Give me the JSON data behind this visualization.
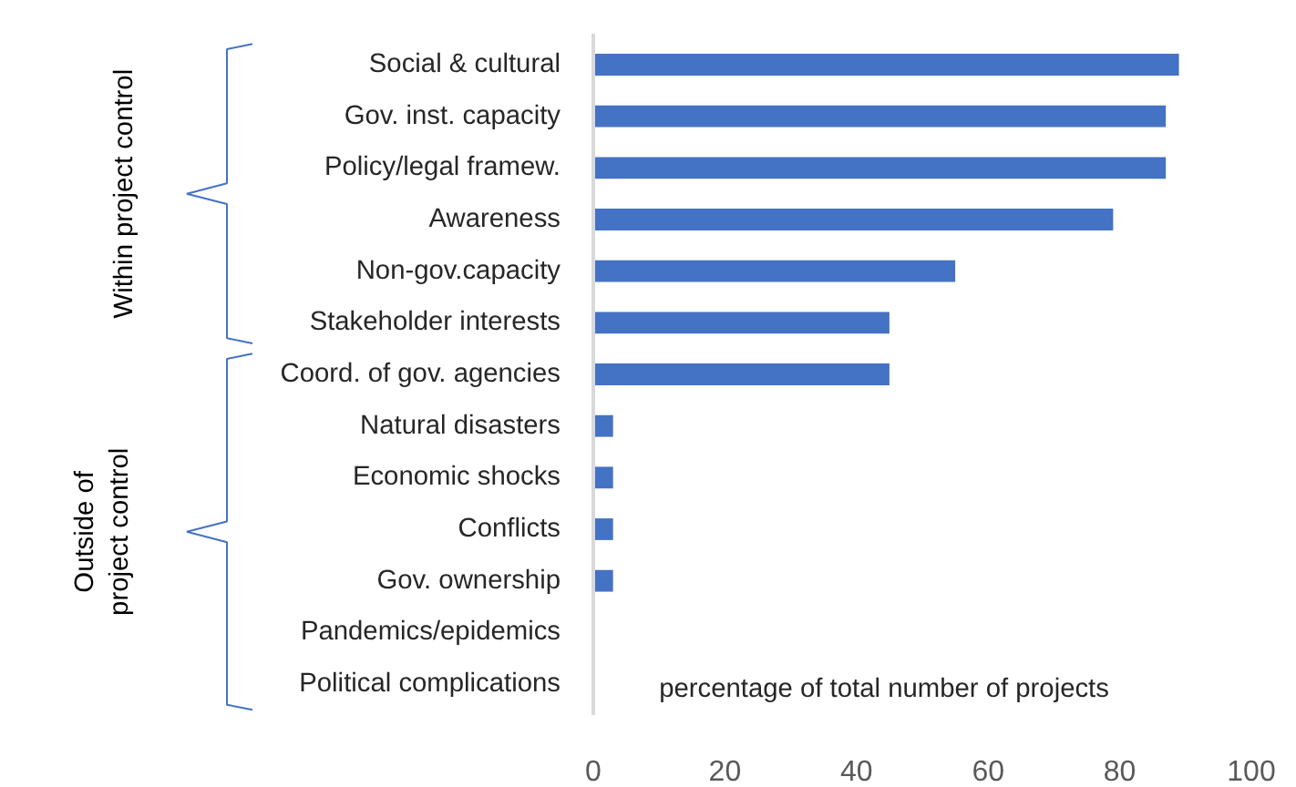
{
  "chart_data": {
    "type": "bar",
    "orientation": "horizontal",
    "categories": [
      "Social & cultural",
      "Gov. inst. capacity",
      "Policy/legal framew.",
      "Awareness",
      "Non-gov.capacity",
      "Stakeholder interests",
      "Coord. of gov. agencies",
      "Natural disasters",
      "Economic shocks",
      "Conflicts",
      "Gov. ownership",
      "Pandemics/epidemics",
      "Political complications"
    ],
    "values": [
      89,
      87,
      87,
      79,
      55,
      45,
      45,
      3,
      3,
      3,
      3,
      0,
      0
    ],
    "color": "#4472c4",
    "xlim": [
      0,
      100
    ],
    "xticks": [
      0,
      20,
      40,
      60,
      80,
      100
    ],
    "xlabel": "percentage of total number of projects",
    "annotations": [
      "Within project control",
      "Outside of\nproject control"
    ],
    "grid": false
  }
}
